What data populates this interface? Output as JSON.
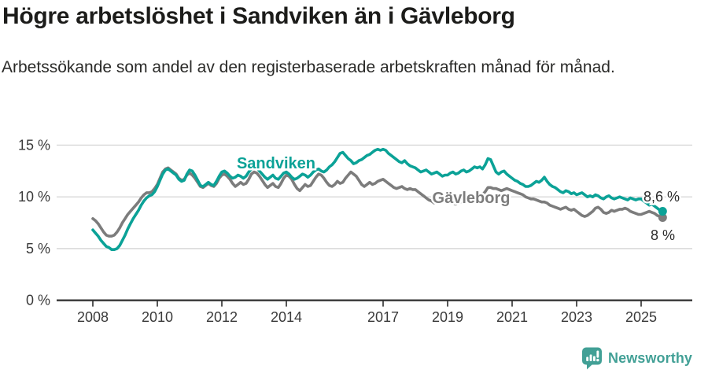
{
  "header": {
    "title": "Högre arbetslöshet i Sandviken än i Gävleborg",
    "subtitle": "Arbetssökande som andel av den registerbaserade arbetskraften månad för månad."
  },
  "chart_data": {
    "type": "line",
    "title": "Högre arbetslöshet i Sandviken än i Gävleborg",
    "x_start": "2008-01",
    "x_end": "2025-09",
    "x_frequency": "monthly",
    "x_tick_labels": [
      "2008",
      "2010",
      "2012",
      "2014",
      "2017",
      "2019",
      "2021",
      "2023",
      "2025"
    ],
    "y_ticks": [
      {
        "value": 0,
        "label": "0 %"
      },
      {
        "value": 5,
        "label": "5 %"
      },
      {
        "value": 10,
        "label": "10 %"
      },
      {
        "value": 15,
        "label": "15 %"
      }
    ],
    "ylim": [
      0,
      16.5
    ],
    "grid": "horizontal",
    "legend_position": "inline-labels",
    "colors": {
      "grid": "#d8d8d8",
      "axis": "#2d2d2d",
      "tick_text": "#3a3a3a",
      "value_label_text": "#2b2b2b"
    },
    "series": [
      {
        "name": "Gävleborg",
        "color": "#7c7c7c",
        "end_label": "8 %",
        "last_value": 8.0,
        "values": [
          7.9,
          7.7,
          7.4,
          7.0,
          6.6,
          6.3,
          6.2,
          6.2,
          6.3,
          6.6,
          7.0,
          7.5,
          7.9,
          8.3,
          8.6,
          8.9,
          9.2,
          9.5,
          9.9,
          10.2,
          10.4,
          10.4,
          10.5,
          10.8,
          11.2,
          11.8,
          12.4,
          12.7,
          12.8,
          12.6,
          12.4,
          12.2,
          11.8,
          11.6,
          11.7,
          12.1,
          12.3,
          12.1,
          11.8,
          11.4,
          11.0,
          10.9,
          11.1,
          11.3,
          11.1,
          11.0,
          11.3,
          11.8,
          12.1,
          12.2,
          12.0,
          11.7,
          11.3,
          11.0,
          11.2,
          11.4,
          11.2,
          11.3,
          11.7,
          12.2,
          12.4,
          12.3,
          12.0,
          11.6,
          11.2,
          10.9,
          11.1,
          11.3,
          11.0,
          10.9,
          11.3,
          11.8,
          12.1,
          12.0,
          11.7,
          11.2,
          10.8,
          10.6,
          10.9,
          11.2,
          11.0,
          11.1,
          11.5,
          11.9,
          12.2,
          12.1,
          11.8,
          11.4,
          11.1,
          11.0,
          11.2,
          11.5,
          11.3,
          11.4,
          11.8,
          12.1,
          12.4,
          12.2,
          12.0,
          11.6,
          11.2,
          11.0,
          11.2,
          11.4,
          11.2,
          11.3,
          11.5,
          11.6,
          11.7,
          11.5,
          11.3,
          11.1,
          10.9,
          10.8,
          10.9,
          11.0,
          10.8,
          10.7,
          10.8,
          10.7,
          10.7,
          10.5,
          10.3,
          10.1,
          9.9,
          9.7,
          9.6,
          9.4,
          9.5,
          9.6,
          9.5,
          9.6,
          9.6,
          9.5,
          9.4,
          9.3,
          9.4,
          9.5,
          9.7,
          9.8,
          9.6,
          9.7,
          9.9,
          10.0,
          10.0,
          10.2,
          10.5,
          10.9,
          10.9,
          10.8,
          10.8,
          10.7,
          10.6,
          10.7,
          10.8,
          10.7,
          10.6,
          10.5,
          10.4,
          10.3,
          10.2,
          10.0,
          9.9,
          9.8,
          9.8,
          9.7,
          9.6,
          9.5,
          9.5,
          9.4,
          9.2,
          9.1,
          9.0,
          8.9,
          8.8,
          8.9,
          9.0,
          8.8,
          8.7,
          8.8,
          8.6,
          8.4,
          8.2,
          8.1,
          8.2,
          8.4,
          8.6,
          8.9,
          9.0,
          8.8,
          8.5,
          8.4,
          8.5,
          8.7,
          8.6,
          8.7,
          8.8,
          8.8,
          8.9,
          8.8,
          8.6,
          8.5,
          8.4,
          8.3,
          8.3,
          8.4,
          8.5,
          8.6,
          8.5,
          8.4,
          8.2,
          8.1,
          8.0
        ]
      },
      {
        "name": "Sandviken",
        "color": "#0ba297",
        "end_label": "8,6 %",
        "last_value": 8.6,
        "values": [
          6.8,
          6.5,
          6.2,
          5.8,
          5.5,
          5.2,
          5.1,
          4.9,
          4.9,
          5.0,
          5.3,
          5.8,
          6.3,
          6.9,
          7.4,
          7.9,
          8.3,
          8.7,
          9.2,
          9.6,
          9.9,
          10.1,
          10.2,
          10.5,
          11.0,
          11.6,
          12.2,
          12.6,
          12.7,
          12.5,
          12.3,
          12.1,
          11.7,
          11.5,
          11.6,
          12.2,
          12.6,
          12.5,
          12.1,
          11.6,
          11.1,
          11.0,
          11.2,
          11.4,
          11.2,
          11.1,
          11.5,
          12.0,
          12.4,
          12.5,
          12.3,
          12.0,
          11.8,
          11.9,
          12.1,
          12.0,
          11.8,
          12.0,
          12.4,
          12.7,
          12.9,
          12.8,
          12.5,
          12.2,
          11.9,
          11.7,
          11.9,
          12.1,
          11.8,
          11.7,
          12.0,
          12.3,
          12.4,
          12.2,
          11.9,
          11.7,
          11.8,
          12.0,
          12.2,
          12.1,
          11.9,
          12.1,
          12.4,
          12.6,
          12.7,
          12.5,
          12.4,
          12.6,
          12.9,
          13.1,
          13.4,
          13.8,
          14.2,
          14.3,
          14.0,
          13.7,
          13.5,
          13.2,
          13.3,
          13.5,
          13.6,
          13.8,
          14.0,
          14.1,
          14.3,
          14.5,
          14.6,
          14.5,
          14.6,
          14.5,
          14.2,
          14.0,
          13.8,
          13.6,
          13.4,
          13.3,
          13.5,
          13.2,
          13.0,
          12.9,
          12.8,
          12.6,
          12.4,
          12.5,
          12.6,
          12.4,
          12.2,
          12.3,
          12.4,
          12.2,
          12.0,
          12.1,
          12.1,
          12.3,
          12.4,
          12.2,
          12.3,
          12.5,
          12.6,
          12.4,
          12.5,
          12.7,
          12.9,
          12.8,
          12.9,
          12.7,
          13.1,
          13.7,
          13.6,
          13.0,
          12.4,
          12.2,
          12.4,
          12.5,
          12.2,
          12.0,
          11.8,
          11.6,
          11.5,
          11.3,
          11.2,
          11.0,
          11.0,
          11.1,
          11.3,
          11.5,
          11.4,
          11.6,
          11.9,
          11.5,
          11.2,
          11.0,
          10.9,
          10.7,
          10.5,
          10.4,
          10.6,
          10.5,
          10.3,
          10.4,
          10.2,
          10.3,
          10.4,
          10.2,
          10.0,
          10.1,
          10.0,
          10.2,
          10.1,
          9.9,
          9.8,
          10.0,
          10.1,
          9.9,
          9.8,
          9.9,
          10.0,
          9.9,
          9.8,
          9.7,
          9.9,
          9.8,
          9.7,
          9.8,
          9.8,
          9.6,
          9.4,
          9.2,
          9.3,
          9.1,
          8.9,
          8.7,
          8.6
        ]
      }
    ]
  },
  "footer": {
    "brand": "Newsworthy",
    "brand_color": "#42a096"
  }
}
